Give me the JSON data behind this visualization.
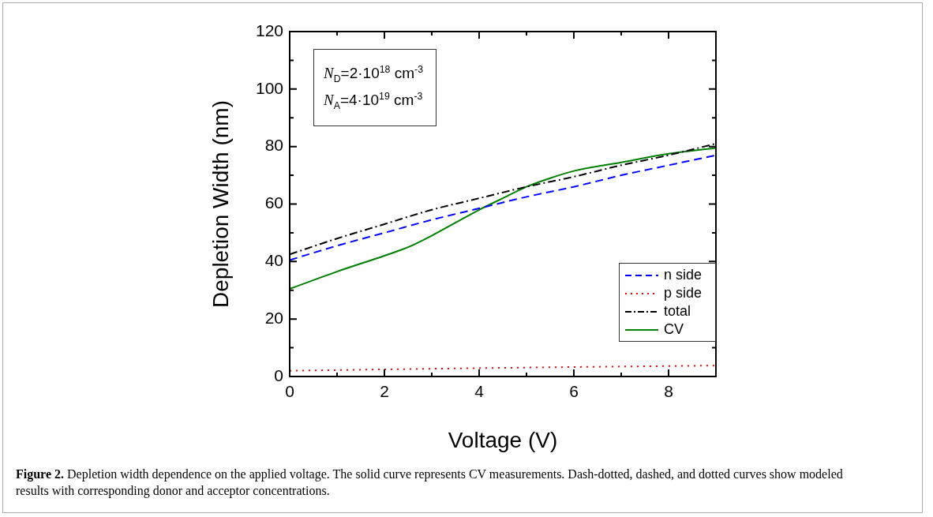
{
  "chart_data": {
    "type": "line",
    "xlabel": "Voltage (V)",
    "ylabel": "Depletion Width (nm)",
    "xlim": [
      0,
      9
    ],
    "ylim": [
      0,
      120
    ],
    "xticks": [
      0,
      {
        "value": 1,
        "label": null
      },
      2,
      {
        "value": 3,
        "label": null
      },
      4,
      {
        "value": 5,
        "label": null
      },
      6,
      {
        "value": 7,
        "label": null
      },
      8,
      {
        "value": 9,
        "label": null
      }
    ],
    "yticks": [
      0,
      {
        "value": 10,
        "label": null
      },
      20,
      {
        "value": 30,
        "label": null
      },
      40,
      {
        "value": 50,
        "label": null
      },
      60,
      {
        "value": 70,
        "label": null
      },
      80,
      {
        "value": 90,
        "label": null
      },
      100,
      {
        "value": 110,
        "label": null
      },
      120
    ],
    "grid": false,
    "legend": "bottom right",
    "marker": "none",
    "series": [
      {
        "name": "n side",
        "color": "#0000ff",
        "line_style": "dashed",
        "x": [
          0,
          1,
          2,
          3,
          4,
          5,
          6,
          7,
          8,
          9
        ],
        "values": [
          40.5,
          45.5,
          50,
          54.5,
          58.5,
          62.5,
          66,
          70,
          73.5,
          77
        ]
      },
      {
        "name": "p side",
        "color": "#ff0000",
        "line_style": "dotted",
        "x": [
          0,
          3,
          6,
          9
        ],
        "values": [
          2,
          2.7,
          3.3,
          3.8
        ]
      },
      {
        "name": "total",
        "color": "#000000",
        "line_style": "dashdot",
        "x": [
          0,
          1,
          2,
          3,
          4,
          5,
          6,
          7,
          8,
          9
        ],
        "values": [
          42.5,
          48,
          53,
          58,
          62,
          66,
          69.5,
          73.5,
          77,
          81
        ]
      },
      {
        "name": "CV",
        "color": "#007f00",
        "line_style": "solid",
        "x": [
          0,
          1,
          2,
          2.5,
          3,
          3.5,
          4,
          4.5,
          5,
          5.5,
          6,
          7,
          8,
          9
        ],
        "values": [
          30.5,
          36.5,
          42,
          45,
          49,
          53.5,
          58,
          62,
          66,
          69,
          71.5,
          74.5,
          77.5,
          79.5
        ]
      }
    ],
    "annotations": [
      "N$_{D}$=2·10$^{18}$ cm$^{-3}$",
      "N$_{A}$=4·10$^{19}$ cm$^{-3}$",
      "Figure 2. Depletion width dependence on the applied voltage. The solid curve represents CV measurements. Dash-dotted, dashed, and dotted curves show modeled results with corresponding donor and acceptor concentrations."
    ]
  }
}
